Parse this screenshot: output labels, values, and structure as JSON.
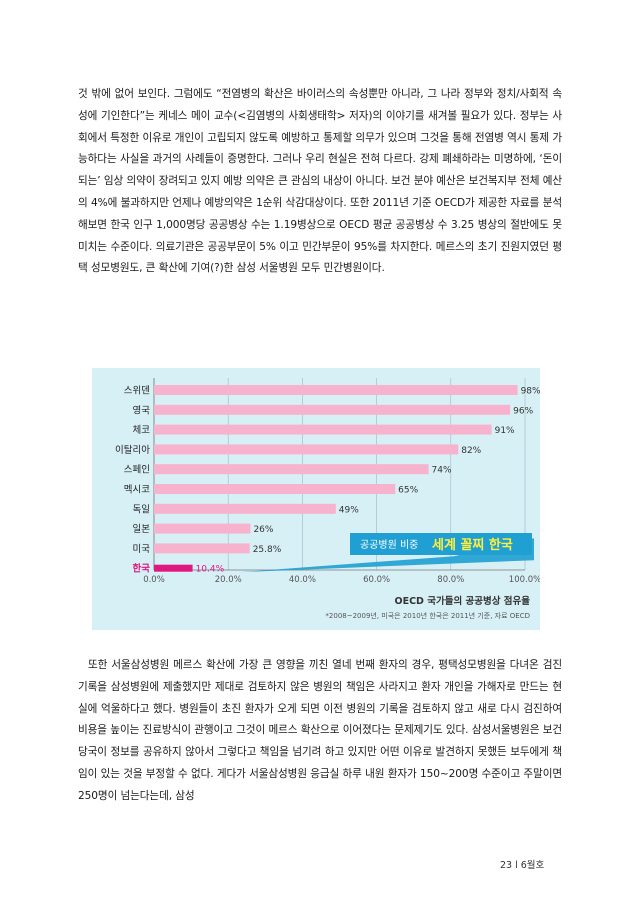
{
  "paragraphs": [
    "것 밖에 없어 보인다. 그럼에도 “전염병의 확산은 바이러스의 속성뿐만 아니라, 그 나라 정부와 정치/사회적 속성에 기인한다”는 케네스 메이 교수(<김염병의 사회생태학> 저자)의 이야기를 새겨볼 필요가 있다. 정부는 사회에서 특정한 이유로 개인이 고립되지 않도록 예방하고 통제할 의무가 있으며 그것을 통해 전염병 역시 통제 가능하다는 사실을 과거의 사례들이 증명한다. 그러나 우리 현실은 전혀 다르다. 강제 폐쇄하라는 미명하에, ‘돈이 되는’ 임상 의약이 장려되고 있지 예방 의약은 큰 관심의 내상이 아니다. 보건 분야 예산은 보건복지부 전체 예산의 4%에 불과하지만 언제나 예방의약은 1순위 삭감대상이다. 또한 2011년 기준 OECD가 제공한 자료를 분석해보면 한국 인구 1,000명당 공공병상 수는 1.19병상으로 OECD 평균 공공병상 수 3.25 병상의 절반에도 못 미치는 수준이다. 의료기관은 공공부문이 5% 이고 민간부문이 95%를 차지한다. 메르스의 초기 진원지였던 평택 성모병원도, 큰 확산에 기여(?)한 삼성 서울병원 모두 민간병원이다.",
    "또한 서울삼성병원 메르스 확산에 가장 큰 영향을 끼친 열네 번째 환자의 경우, 평택성모병원을 다녀온 검진 기록을 삼성병원에 제출했지만 제대로 검토하지 않은 병원의 책임은 사라지고 환자 개인을 가해자로 만드는 현실에 억울하다고 했다. 병원들이 초진 환자가 오게 되면 이전 병원의 기록을 검토하지 않고 새로 다시 검진하여 비용을 높이는 진료방식이 관행이고 그것이 메르스 확산으로 이어졌다는 문제제기도 있다. 삼성서울병원은 보건당국이 정보를 공유하지 않아서 그렇다고 책임을 넘기려 하고 있지만 어떤 이유로 발견하지 못했든 보두에게 책임이 있는 것을 부정할 수 없다. 게다가 서울삼성병원 응급실 하루 내원 환자가 150~200명 수준이고 주말이면 250명이 넘는다는데, 삼성"
  ],
  "footer": "23 l 6월호",
  "colors": {
    "bar": "#f7b3cd",
    "highlight_bar": "#e0177f",
    "highlight_label": "#e0177f",
    "panel_bg": "#d7f0f6",
    "callout_bg": "#1f9fd2"
  },
  "chart_data": {
    "type": "bar",
    "orientation": "horizontal",
    "categories": [
      "스위덴",
      "영국",
      "체코",
      "이탈리아",
      "스페인",
      "멕시코",
      "독일",
      "일본",
      "미국",
      "한국"
    ],
    "values": [
      98,
      96,
      91,
      82,
      74,
      65,
      49,
      26,
      25.8,
      10.4
    ],
    "value_labels": [
      "98%",
      "96%",
      "91%",
      "82%",
      "74%",
      "65%",
      "49%",
      "26%",
      "25.8%",
      "10.4%"
    ],
    "highlight_category": "한국",
    "xlim": [
      0,
      100
    ],
    "xticks": [
      "0.0%",
      "20.0%",
      "40.0%",
      "60.0%",
      "80.0%",
      "100.0%"
    ],
    "grid": true,
    "callout_normal": "공공병원 비중",
    "callout_bold": "세계 꼴찌 한국",
    "title": "OECD 국가들의 공공병상 점유율",
    "note": "*2008~2009년, 미국은 2010년 한국은 2011년 기준, 자료 OECD"
  }
}
